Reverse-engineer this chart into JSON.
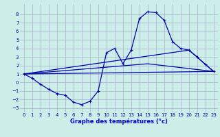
{
  "background_color": "#cceee8",
  "grid_color": "#aaaacc",
  "line_color": "#0000aa",
  "xlabel": "Graphe des températures (°c)",
  "xlabel_color": "#0000cc",
  "ylim": [
    -3.5,
    9.2
  ],
  "xlim": [
    -0.5,
    23.5
  ],
  "yticks": [
    -3,
    -2,
    -1,
    0,
    1,
    2,
    3,
    4,
    5,
    6,
    7,
    8
  ],
  "xticks": [
    0,
    1,
    2,
    3,
    4,
    5,
    6,
    7,
    8,
    9,
    10,
    11,
    12,
    13,
    14,
    15,
    16,
    17,
    18,
    19,
    20,
    21,
    22,
    23
  ],
  "line1_x": [
    0,
    1,
    2,
    3,
    4,
    5,
    6,
    7,
    8,
    9,
    10,
    11,
    12,
    13,
    14,
    15,
    16,
    17,
    18,
    19,
    20,
    21,
    22,
    23
  ],
  "line1_y": [
    1.0,
    0.5,
    -0.2,
    -0.8,
    -1.3,
    -1.5,
    -2.3,
    -2.6,
    -2.2,
    -1.0,
    3.5,
    4.0,
    2.2,
    3.8,
    7.5,
    8.3,
    8.2,
    7.3,
    4.8,
    4.0,
    3.8,
    3.0,
    2.1,
    1.3
  ],
  "line2_x": [
    0,
    23
  ],
  "line2_y": [
    1.0,
    1.3
  ],
  "line3_x": [
    0,
    15,
    23
  ],
  "line3_y": [
    1.0,
    2.2,
    1.3
  ],
  "line4_x": [
    0,
    20,
    23
  ],
  "line4_y": [
    1.0,
    3.8,
    1.3
  ],
  "marker": "+"
}
